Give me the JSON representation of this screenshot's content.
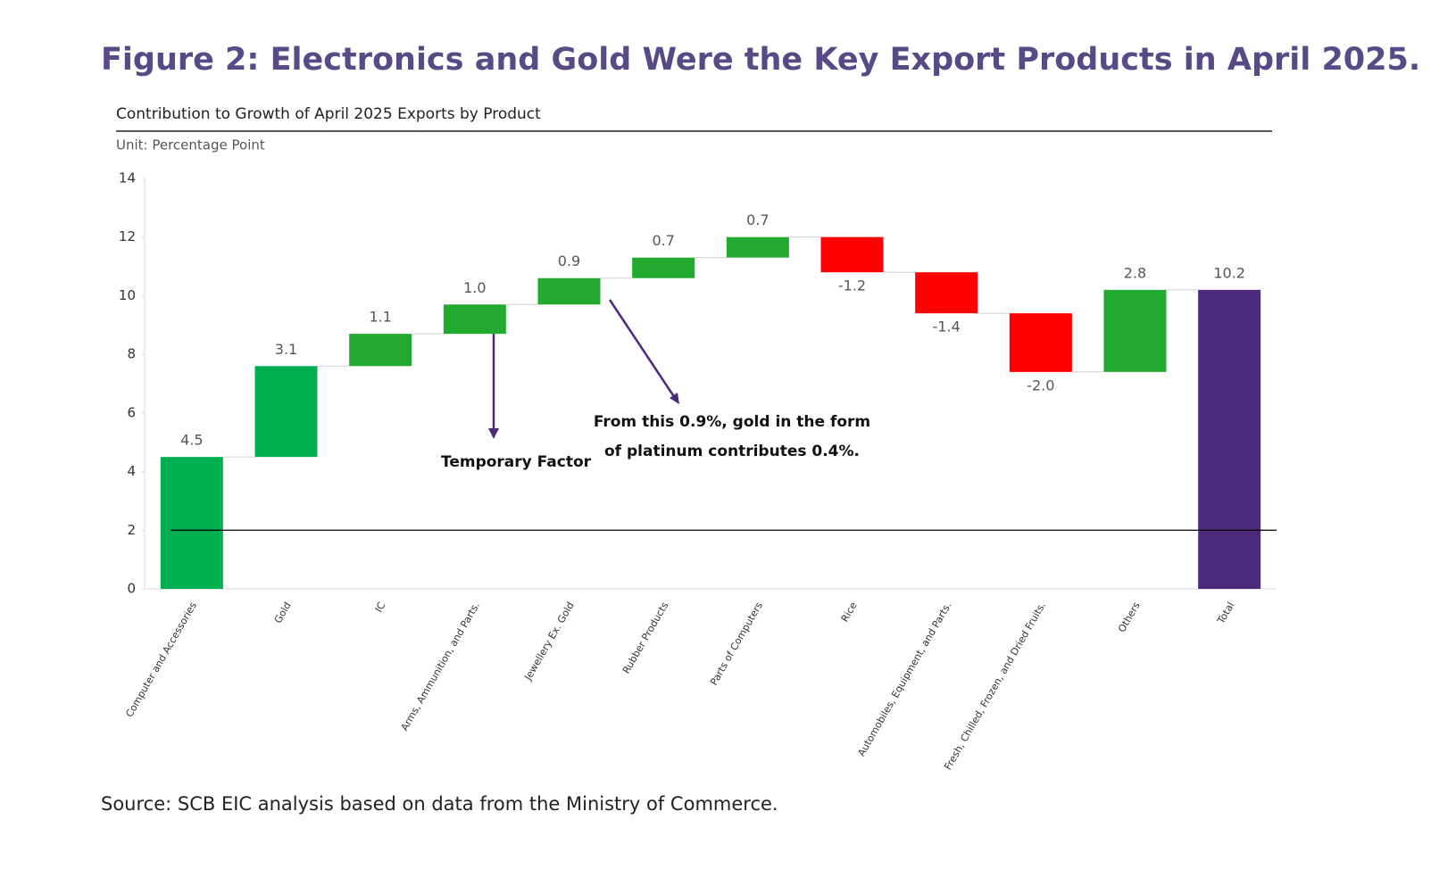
{
  "chart_data": {
    "type": "waterfall",
    "title": "Figure 2: Electronics and Gold Were the Key Export Products in April 2025.",
    "subtitle": "Contribution to Growth of April 2025 Exports by Product",
    "unit": "Unit: Percentage Point",
    "source": "Source: SCB EIC analysis based on data from the Ministry of Commerce.",
    "categories": [
      "Computer and Accessories",
      "Gold",
      "IC",
      "Arms, Ammunition, and Parts.",
      "Jewellery Ex. Gold",
      "Rubber Products",
      "Parts of Computers",
      "Rice",
      "Automobiles, Equipment, and Parts.",
      "Fresh, Chilled, Frozen, and Dried Fruits.",
      "Others",
      "Total"
    ],
    "values": [
      4.5,
      3.1,
      1.1,
      1.0,
      0.9,
      0.7,
      0.7,
      -1.2,
      -1.4,
      -2.0,
      2.8,
      10.2
    ],
    "value_labels": [
      "4.5",
      "3.1",
      "1.1",
      "1.0",
      "0.9",
      "0.7",
      "0.7",
      "-1.2",
      "-1.4",
      "-2.0",
      "2.8",
      "10.2"
    ],
    "measure": [
      "relative",
      "relative",
      "relative",
      "relative",
      "relative",
      "relative",
      "relative",
      "relative",
      "relative",
      "relative",
      "relative",
      "total"
    ],
    "colors": [
      "#00b050",
      "#00b050",
      "#22aa2e",
      "#22aa2e",
      "#22aa2e",
      "#22aa2e",
      "#22aa2e",
      "#ff0000",
      "#ff0000",
      "#ff0000",
      "#22aa2e",
      "#4b2a7c"
    ],
    "ylim": [
      0,
      14
    ],
    "yticks": [
      0,
      2,
      4,
      6,
      8,
      10,
      12,
      14
    ],
    "hlines": [
      2
    ],
    "annotations": [
      {
        "lines": [
          "Temporary Factor"
        ]
      },
      {
        "lines": [
          "From this 0.9%, gold in the form",
          "of platinum contributes 0.4%."
        ]
      }
    ]
  }
}
